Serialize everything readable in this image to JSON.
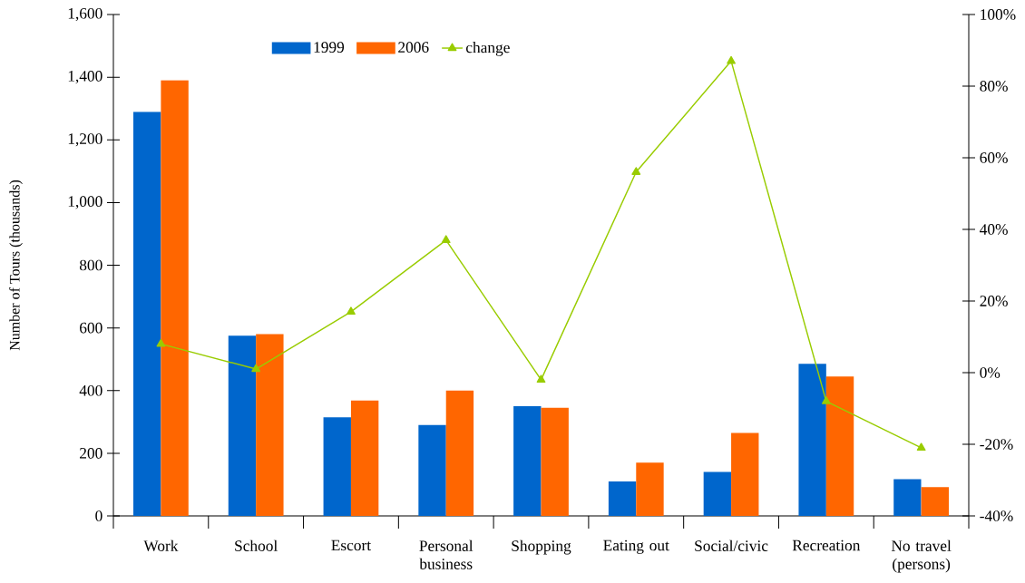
{
  "chart_data": {
    "type": "bar",
    "ylabel": "Number of Tours (thousands)",
    "categories": [
      "Work",
      "School",
      "Escort",
      "Personal business",
      "Shopping",
      "Eating out",
      "Social/civic",
      "Recreation",
      "No travel (persons)"
    ],
    "series": [
      {
        "name": "1999",
        "color": "#0066cc",
        "values": [
          1290,
          575,
          315,
          290,
          350,
          110,
          140,
          485,
          117
        ]
      },
      {
        "name": "2006",
        "color": "#ff6600",
        "values": [
          1390,
          580,
          368,
          400,
          345,
          170,
          265,
          445,
          92
        ]
      },
      {
        "name": "change",
        "type": "line",
        "axis": "y2",
        "color": "#99cc00",
        "marker": "triangle",
        "values": [
          8,
          1,
          17,
          37,
          -2,
          56,
          87,
          -8,
          -21
        ]
      }
    ],
    "ylim": [
      0,
      1600
    ],
    "yticks": [
      0,
      200,
      400,
      600,
      800,
      {
        "value": 1000,
        "label": "1,000"
      },
      {
        "value": 1200,
        "label": "1,200"
      },
      {
        "value": 1400,
        "label": "1,400"
      },
      {
        "value": 1600,
        "label": "1,600"
      }
    ],
    "y2lim": [
      -40,
      100
    ],
    "y2ticks": [
      {
        "value": -40,
        "label": "-40%"
      },
      {
        "value": -20,
        "label": "-20%"
      },
      {
        "value": 0,
        "label": "0%"
      },
      {
        "value": 20,
        "label": "20%"
      },
      {
        "value": 40,
        "label": "40%"
      },
      {
        "value": 60,
        "label": "60%"
      },
      {
        "value": 80,
        "label": "80%"
      },
      {
        "value": 100,
        "label": "100%"
      }
    ],
    "legend": "top",
    "grid": false
  }
}
